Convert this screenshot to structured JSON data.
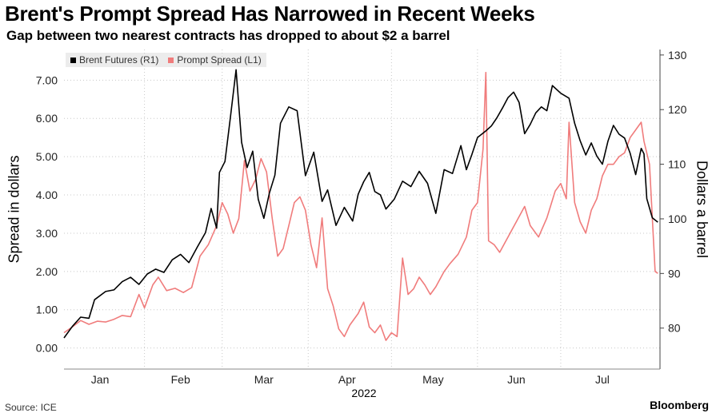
{
  "title": "Brent's Prompt Spread Has Narrowed in Recent Weeks",
  "subtitle": "Gap between two nearest contracts has dropped to about $2 a barrel",
  "source_label": "Source: ICE",
  "brand": "Bloomberg",
  "chart_data": {
    "type": "line",
    "title": "Brent's Prompt Spread Has Narrowed in Recent Weeks",
    "subtitle": "Gap between two nearest contracts has dropped to about $2 a barrel",
    "x_label": "2022",
    "y_left_label": "Spread in dollars",
    "y_right_label": "Dollars a barrel",
    "y_left_ticks": [
      "0.00",
      "1.00",
      "2.00",
      "3.00",
      "4.00",
      "5.00",
      "6.00",
      "7.00"
    ],
    "y_right_ticks": [
      "80",
      "90",
      "100",
      "110",
      "120",
      "130"
    ],
    "y_left_range": [
      -0.55,
      7.8
    ],
    "y_right_range": [
      72.5,
      131
    ],
    "x_range": [
      "2022-01-03",
      "2022-07-31"
    ],
    "months": [
      {
        "label": "Jan",
        "date": "2022-01-16"
      },
      {
        "label": "Feb",
        "date": "2022-02-14"
      },
      {
        "label": "Mar",
        "date": "2022-03-16"
      },
      {
        "label": "Apr",
        "date": "2022-04-15"
      },
      {
        "label": "May",
        "date": "2022-05-16"
      },
      {
        "label": "Jun",
        "date": "2022-06-15"
      },
      {
        "label": "Jul",
        "date": "2022-07-16"
      }
    ],
    "month_grid": [
      "2022-02-01",
      "2022-03-01",
      "2022-04-01",
      "2022-05-01",
      "2022-06-01",
      "2022-07-01"
    ],
    "legend_position": "top-left",
    "series": [
      {
        "name": "Brent Futures (R1)",
        "axis": "right",
        "color": "#000000",
        "points": [
          [
            "2022-01-03",
            78.2
          ],
          [
            "2022-01-06",
            80.3
          ],
          [
            "2022-01-09",
            82.0
          ],
          [
            "2022-01-12",
            81.8
          ],
          [
            "2022-01-14",
            85.2
          ],
          [
            "2022-01-18",
            86.7
          ],
          [
            "2022-01-21",
            87.0
          ],
          [
            "2022-01-24",
            88.5
          ],
          [
            "2022-01-27",
            89.3
          ],
          [
            "2022-01-30",
            88.0
          ],
          [
            "2022-02-02",
            89.9
          ],
          [
            "2022-02-05",
            90.8
          ],
          [
            "2022-02-08",
            90.2
          ],
          [
            "2022-02-11",
            92.5
          ],
          [
            "2022-02-14",
            93.5
          ],
          [
            "2022-02-17",
            92.0
          ],
          [
            "2022-02-20",
            94.8
          ],
          [
            "2022-02-23",
            97.5
          ],
          [
            "2022-02-25",
            101.9
          ],
          [
            "2022-02-27",
            98.3
          ],
          [
            "2022-02-28",
            108.5
          ],
          [
            "2022-03-02",
            110.5
          ],
          [
            "2022-03-04",
            118.7
          ],
          [
            "2022-03-06",
            127.3
          ],
          [
            "2022-03-08",
            114.0
          ],
          [
            "2022-03-10",
            109.4
          ],
          [
            "2022-03-12",
            112.4
          ],
          [
            "2022-03-14",
            103.6
          ],
          [
            "2022-03-16",
            100.1
          ],
          [
            "2022-03-18",
            104.7
          ],
          [
            "2022-03-20",
            108.0
          ],
          [
            "2022-03-22",
            117.5
          ],
          [
            "2022-03-25",
            120.5
          ],
          [
            "2022-03-28",
            119.8
          ],
          [
            "2022-03-31",
            107.9
          ],
          [
            "2022-04-03",
            112.2
          ],
          [
            "2022-04-06",
            103.2
          ],
          [
            "2022-04-08",
            105.3
          ],
          [
            "2022-04-11",
            98.8
          ],
          [
            "2022-04-14",
            102.1
          ],
          [
            "2022-04-17",
            99.6
          ],
          [
            "2022-04-19",
            104.5
          ],
          [
            "2022-04-21",
            106.8
          ],
          [
            "2022-04-23",
            108.5
          ],
          [
            "2022-04-25",
            105.0
          ],
          [
            "2022-04-27",
            104.4
          ],
          [
            "2022-04-29",
            101.8
          ],
          [
            "2022-05-02",
            103.6
          ],
          [
            "2022-05-05",
            106.9
          ],
          [
            "2022-05-08",
            105.9
          ],
          [
            "2022-05-11",
            108.7
          ],
          [
            "2022-05-14",
            106.5
          ],
          [
            "2022-05-17",
            101.0
          ],
          [
            "2022-05-20",
            109.0
          ],
          [
            "2022-05-23",
            108.3
          ],
          [
            "2022-05-26",
            113.4
          ],
          [
            "2022-05-28",
            109.0
          ],
          [
            "2022-05-30",
            111.8
          ],
          [
            "2022-06-01",
            114.9
          ],
          [
            "2022-06-04",
            116.1
          ],
          [
            "2022-06-06",
            117.0
          ],
          [
            "2022-06-08",
            118.5
          ],
          [
            "2022-06-10",
            120.3
          ],
          [
            "2022-06-12",
            122.2
          ],
          [
            "2022-06-14",
            123.2
          ],
          [
            "2022-06-16",
            121.3
          ],
          [
            "2022-06-18",
            115.6
          ],
          [
            "2022-06-20",
            117.3
          ],
          [
            "2022-06-22",
            119.4
          ],
          [
            "2022-06-24",
            120.5
          ],
          [
            "2022-06-26",
            119.8
          ],
          [
            "2022-06-28",
            124.4
          ],
          [
            "2022-07-01",
            123.0
          ],
          [
            "2022-07-04",
            122.1
          ],
          [
            "2022-07-06",
            117.5
          ],
          [
            "2022-07-08",
            114.3
          ],
          [
            "2022-07-10",
            111.7
          ],
          [
            "2022-07-12",
            113.9
          ],
          [
            "2022-07-14",
            111.5
          ],
          [
            "2022-07-16",
            110.0
          ],
          [
            "2022-07-18",
            114.2
          ],
          [
            "2022-07-20",
            117.1
          ],
          [
            "2022-07-22",
            115.5
          ],
          [
            "2022-07-24",
            114.8
          ],
          [
            "2022-07-26",
            112.0
          ],
          [
            "2022-07-28",
            108.1
          ],
          [
            "2022-07-30",
            112.9
          ],
          [
            "2022-07-31",
            111.9
          ],
          [
            "2022-08-01",
            103.7
          ],
          [
            "2022-08-03",
            100.2
          ],
          [
            "2022-08-05",
            99.4
          ]
        ]
      },
      {
        "name": "Prompt Spread (L1)",
        "axis": "left",
        "color": "#f07c7c",
        "points": [
          [
            "2022-01-03",
            0.4
          ],
          [
            "2022-01-06",
            0.55
          ],
          [
            "2022-01-09",
            0.72
          ],
          [
            "2022-01-12",
            0.62
          ],
          [
            "2022-01-15",
            0.7
          ],
          [
            "2022-01-18",
            0.68
          ],
          [
            "2022-01-21",
            0.75
          ],
          [
            "2022-01-24",
            0.85
          ],
          [
            "2022-01-27",
            0.82
          ],
          [
            "2022-01-30",
            1.4
          ],
          [
            "2022-02-01",
            1.05
          ],
          [
            "2022-02-04",
            1.65
          ],
          [
            "2022-02-06",
            1.85
          ],
          [
            "2022-02-09",
            1.5
          ],
          [
            "2022-02-12",
            1.56
          ],
          [
            "2022-02-15",
            1.45
          ],
          [
            "2022-02-18",
            1.58
          ],
          [
            "2022-02-21",
            2.4
          ],
          [
            "2022-02-24",
            2.7
          ],
          [
            "2022-02-27",
            3.2
          ],
          [
            "2022-03-01",
            3.8
          ],
          [
            "2022-03-03",
            3.5
          ],
          [
            "2022-03-05",
            3.0
          ],
          [
            "2022-03-07",
            3.38
          ],
          [
            "2022-03-09",
            4.9
          ],
          [
            "2022-03-11",
            4.1
          ],
          [
            "2022-03-13",
            4.4
          ],
          [
            "2022-03-15",
            4.95
          ],
          [
            "2022-03-17",
            4.6
          ],
          [
            "2022-03-19",
            3.4
          ],
          [
            "2022-03-21",
            2.4
          ],
          [
            "2022-03-23",
            2.6
          ],
          [
            "2022-03-25",
            3.2
          ],
          [
            "2022-03-27",
            3.8
          ],
          [
            "2022-03-29",
            3.95
          ],
          [
            "2022-03-31",
            3.6
          ],
          [
            "2022-04-02",
            2.7
          ],
          [
            "2022-04-04",
            2.1
          ],
          [
            "2022-04-06",
            3.4
          ],
          [
            "2022-04-08",
            1.55
          ],
          [
            "2022-04-10",
            1.1
          ],
          [
            "2022-04-12",
            0.5
          ],
          [
            "2022-04-14",
            0.3
          ],
          [
            "2022-04-16",
            0.6
          ],
          [
            "2022-04-19",
            0.9
          ],
          [
            "2022-04-21",
            1.2
          ],
          [
            "2022-04-23",
            0.55
          ],
          [
            "2022-04-25",
            0.4
          ],
          [
            "2022-04-27",
            0.6
          ],
          [
            "2022-04-29",
            0.2
          ],
          [
            "2022-05-01",
            0.4
          ],
          [
            "2022-05-03",
            0.3
          ],
          [
            "2022-05-05",
            2.35
          ],
          [
            "2022-05-07",
            1.4
          ],
          [
            "2022-05-09",
            1.55
          ],
          [
            "2022-05-11",
            1.85
          ],
          [
            "2022-05-13",
            1.65
          ],
          [
            "2022-05-15",
            1.4
          ],
          [
            "2022-05-17",
            1.6
          ],
          [
            "2022-05-20",
            2.0
          ],
          [
            "2022-05-22",
            2.2
          ],
          [
            "2022-05-25",
            2.45
          ],
          [
            "2022-05-28",
            2.9
          ],
          [
            "2022-05-30",
            3.6
          ],
          [
            "2022-06-01",
            3.8
          ],
          [
            "2022-06-03",
            5.2
          ],
          [
            "2022-06-04",
            7.2
          ],
          [
            "2022-06-05",
            2.8
          ],
          [
            "2022-06-07",
            2.7
          ],
          [
            "2022-06-09",
            2.5
          ],
          [
            "2022-06-12",
            2.9
          ],
          [
            "2022-06-15",
            3.3
          ],
          [
            "2022-06-18",
            3.7
          ],
          [
            "2022-06-20",
            3.2
          ],
          [
            "2022-06-23",
            2.9
          ],
          [
            "2022-06-26",
            3.4
          ],
          [
            "2022-06-29",
            4.1
          ],
          [
            "2022-07-01",
            4.3
          ],
          [
            "2022-07-03",
            3.9
          ],
          [
            "2022-07-04",
            5.9
          ],
          [
            "2022-07-06",
            3.8
          ],
          [
            "2022-07-08",
            3.3
          ],
          [
            "2022-07-10",
            3.0
          ],
          [
            "2022-07-12",
            3.6
          ],
          [
            "2022-07-14",
            3.9
          ],
          [
            "2022-07-16",
            4.5
          ],
          [
            "2022-07-18",
            4.8
          ],
          [
            "2022-07-20",
            4.8
          ],
          [
            "2022-07-22",
            5.0
          ],
          [
            "2022-07-24",
            5.1
          ],
          [
            "2022-07-26",
            5.5
          ],
          [
            "2022-07-28",
            5.7
          ],
          [
            "2022-07-30",
            5.9
          ],
          [
            "2022-07-31",
            5.4
          ],
          [
            "2022-08-02",
            4.8
          ],
          [
            "2022-08-04",
            2.0
          ],
          [
            "2022-08-05",
            1.95
          ]
        ]
      }
    ]
  }
}
